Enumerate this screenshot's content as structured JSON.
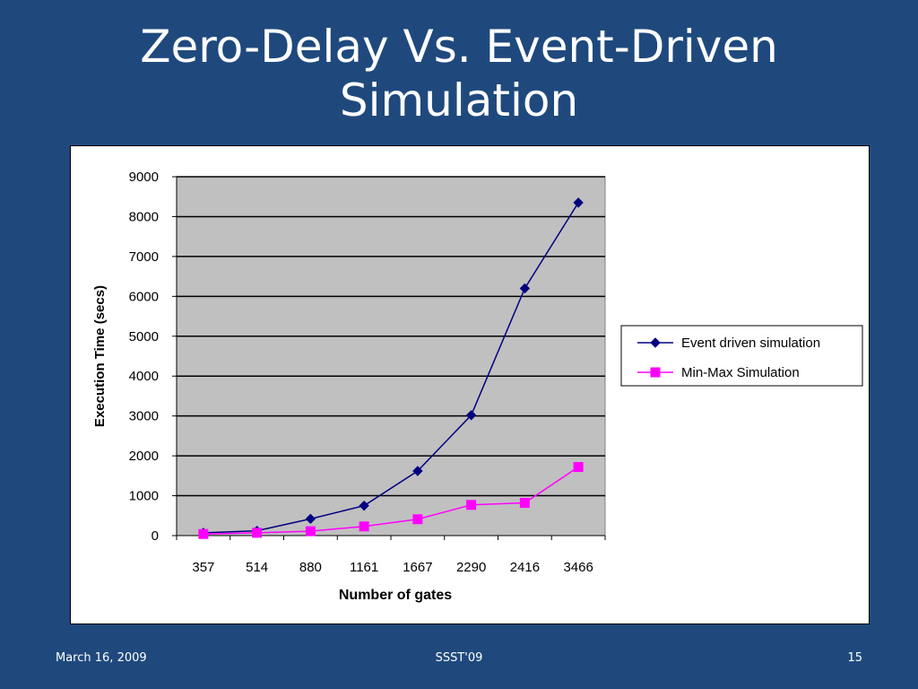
{
  "slide": {
    "title_line1": "Zero-Delay Vs. Event-Driven",
    "title_line2": "Simulation"
  },
  "footer": {
    "date": "March 16, 2009",
    "center": "SSST'09",
    "page": "15"
  },
  "colors": {
    "background": "#1f497d",
    "plot_area": "#c0c0c0",
    "series_event": "#000080",
    "series_minmax": "#ff00ff"
  },
  "chart_data": {
    "type": "line",
    "xlabel": "Number of gates",
    "ylabel": "Execution Time  (secs)",
    "categories": [
      "357",
      "514",
      "880",
      "1161",
      "1667",
      "2290",
      "2416",
      "3466"
    ],
    "ylim": [
      0,
      9000
    ],
    "yticks": [
      "0",
      "1000",
      "2000",
      "3000",
      "4000",
      "5000",
      "6000",
      "7000",
      "8000",
      "9000"
    ],
    "grid": true,
    "legend_position": "right",
    "series": [
      {
        "name": "Event driven simulation",
        "marker": "diamond",
        "values": [
          70,
          120,
          420,
          750,
          1620,
          3020,
          6200,
          8350
        ]
      },
      {
        "name": "Min-Max Simulation",
        "marker": "square",
        "values": [
          40,
          70,
          110,
          230,
          410,
          770,
          820,
          1720
        ]
      }
    ]
  }
}
